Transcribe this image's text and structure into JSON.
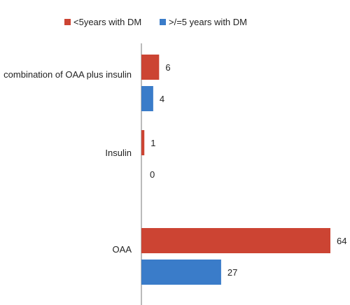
{
  "chart_data": {
    "type": "bar",
    "orientation": "horizontal",
    "categories": [
      "combination of OAA plus insulin",
      "Insulin",
      "OAA"
    ],
    "series": [
      {
        "name": "<5years with DM",
        "color": "#cc4433",
        "values": [
          6,
          1,
          64
        ]
      },
      {
        "name": ">/=5 years with DM",
        "color": "#3a7cc9",
        "values": [
          4,
          0,
          27
        ]
      }
    ],
    "xlim": [
      0,
      64
    ],
    "grid": false,
    "legend_position": "top",
    "data_labels": true
  }
}
